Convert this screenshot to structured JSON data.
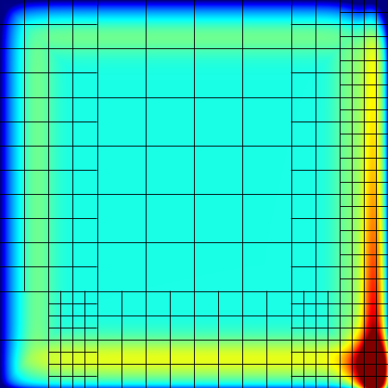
{
  "visualization": {
    "kind": "adaptive-mesh-scalar-field",
    "colormap": "jet",
    "colormap_stops": [
      "#00008b",
      "#0000ff",
      "#0080ff",
      "#00ffff",
      "#40ff80",
      "#80ff00",
      "#ffff00",
      "#ff8000",
      "#ff0000",
      "#8b0000"
    ],
    "grid_line_color": "#000000",
    "mesh": {
      "coarse_divisions": 8,
      "refined_blocks": [
        {
          "i": 7,
          "j": 0,
          "split": 2
        },
        {
          "i": 7,
          "j": 1,
          "split": 2
        },
        {
          "i": 7,
          "j": 2,
          "split": 2
        },
        {
          "i": 7,
          "j": 3,
          "split": 2
        },
        {
          "i": 7,
          "j": 4,
          "split": 2
        },
        {
          "i": 7,
          "j": 5,
          "split": 2
        },
        {
          "i": 7,
          "j": 6,
          "split": 2
        },
        {
          "i": 7,
          "j": 7,
          "split": 2
        },
        {
          "i": 6,
          "j": 6,
          "split": 2
        },
        {
          "i": 6,
          "j": 7,
          "split": 2
        },
        {
          "i": 1,
          "j": 6,
          "split": 2
        },
        {
          "i": 1,
          "j": 7,
          "split": 2
        },
        {
          "i": 0,
          "j": 0,
          "split": 2
        },
        {
          "i": 0,
          "j": 1,
          "split": 2
        },
        {
          "i": 1,
          "j": 0,
          "split": 2
        },
        {
          "i": 1,
          "j": 1,
          "split": 2
        },
        {
          "i": 0,
          "j": 2,
          "split": 2
        },
        {
          "i": 0,
          "j": 3,
          "split": 2
        },
        {
          "i": 0,
          "j": 4,
          "split": 2
        },
        {
          "i": 0,
          "j": 5,
          "split": 2
        },
        {
          "i": 1,
          "j": 2,
          "split": 2
        },
        {
          "i": 1,
          "j": 3,
          "split": 2
        },
        {
          "i": 1,
          "j": 4,
          "split": 2
        },
        {
          "i": 1,
          "j": 5,
          "split": 2
        },
        {
          "i": 6,
          "j": 0,
          "split": 2
        },
        {
          "i": 6,
          "j": 1,
          "split": 2
        },
        {
          "i": 6,
          "j": 2,
          "split": 2
        },
        {
          "i": 6,
          "j": 3,
          "split": 2
        },
        {
          "i": 6,
          "j": 4,
          "split": 2
        },
        {
          "i": 6,
          "j": 5,
          "split": 2
        },
        {
          "i": 2,
          "j": 6,
          "split": 2
        },
        {
          "i": 3,
          "j": 6,
          "split": 2
        },
        {
          "i": 4,
          "j": 6,
          "split": 2
        },
        {
          "i": 5,
          "j": 6,
          "split": 2
        },
        {
          "i": 2,
          "j": 7,
          "split": 2
        },
        {
          "i": 3,
          "j": 7,
          "split": 2
        },
        {
          "i": 4,
          "j": 7,
          "split": 2
        },
        {
          "i": 5,
          "j": 7,
          "split": 2
        }
      ],
      "finest_blocks": [
        {
          "i": 7,
          "j": 0,
          "split": 4
        },
        {
          "i": 7,
          "j": 1,
          "split": 4
        },
        {
          "i": 7,
          "j": 2,
          "split": 4
        },
        {
          "i": 7,
          "j": 3,
          "split": 4
        },
        {
          "i": 7,
          "j": 4,
          "split": 4
        },
        {
          "i": 7,
          "j": 5,
          "split": 4
        },
        {
          "i": 7,
          "j": 6,
          "split": 4
        },
        {
          "i": 7,
          "j": 7,
          "split": 4
        },
        {
          "i": 6,
          "j": 6,
          "split": 4
        },
        {
          "i": 6,
          "j": 7,
          "split": 4
        },
        {
          "i": 1,
          "j": 6,
          "split": 4
        },
        {
          "i": 1,
          "j": 7,
          "split": 4
        }
      ]
    }
  }
}
